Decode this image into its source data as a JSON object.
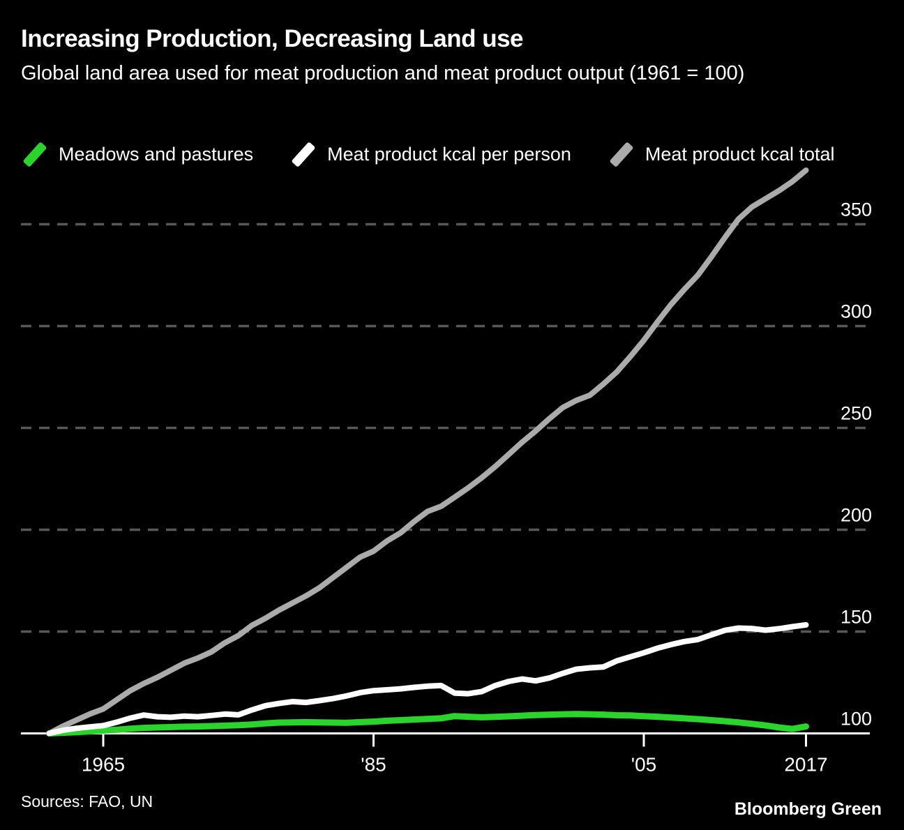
{
  "header": {
    "title": "Increasing Production, Decreasing Land use",
    "subtitle": "Global land area used for meat production and meat product output (1961 = 100)"
  },
  "footer": {
    "sources": "Sources: FAO, UN",
    "brand": "Bloomberg Green"
  },
  "chart_data": {
    "type": "line",
    "title": "Increasing Production, Decreasing Land use",
    "subtitle": "Global land area used for meat production and meat product output (1961 = 100)",
    "xlabel": "",
    "ylabel": "",
    "xlim": [
      1961,
      2017
    ],
    "ylim": [
      95,
      385
    ],
    "grid": true,
    "legend_position": "top",
    "background_color": "#000000",
    "gridline_color": "#585858",
    "axis_color": "#ffffff",
    "x": [
      1961,
      1962,
      1963,
      1964,
      1965,
      1966,
      1967,
      1968,
      1969,
      1970,
      1971,
      1972,
      1973,
      1974,
      1975,
      1976,
      1977,
      1978,
      1979,
      1980,
      1981,
      1982,
      1983,
      1984,
      1985,
      1986,
      1987,
      1988,
      1989,
      1990,
      1991,
      1992,
      1993,
      1994,
      1995,
      1996,
      1997,
      1998,
      1999,
      2000,
      2001,
      2002,
      2003,
      2004,
      2005,
      2006,
      2007,
      2008,
      2009,
      2010,
      2011,
      2012,
      2013,
      2014,
      2015,
      2016,
      2017
    ],
    "yticks": [
      100,
      150,
      200,
      250,
      300,
      350
    ],
    "xticks": [
      {
        "year": 1965,
        "label": "1965"
      },
      {
        "year": 1985,
        "label": "'85"
      },
      {
        "year": 2005,
        "label": "'05"
      },
      {
        "year": 2017,
        "label": "2017"
      }
    ],
    "series": [
      {
        "name": "Meadows and pastures",
        "color": "#2bd42b",
        "values": [
          100,
          100.3,
          100.6,
          101,
          101.4,
          101.8,
          102.3,
          102.7,
          102.9,
          103.1,
          103.3,
          103.4,
          103.6,
          103.8,
          104,
          104.4,
          104.9,
          105.3,
          105.4,
          105.5,
          105.4,
          105.3,
          105.2,
          105.5,
          105.8,
          106.2,
          106.5,
          106.8,
          107.1,
          107.4,
          108.5,
          108.2,
          107.9,
          108.1,
          108.4,
          108.7,
          109,
          109.2,
          109.4,
          109.5,
          109.4,
          109.2,
          108.9,
          108.8,
          108.5,
          108.2,
          107.8,
          107.4,
          107,
          106.5,
          106,
          105.4,
          104.7,
          103.9,
          102.9,
          102.2,
          103.4
        ]
      },
      {
        "name": "Meat product kcal per person",
        "color": "#ffffff",
        "values": [
          100,
          101.5,
          102.5,
          103.2,
          103.8,
          105.5,
          107.5,
          109,
          108.2,
          107.9,
          108.5,
          108.2,
          108.8,
          109.5,
          109.1,
          111.5,
          113.6,
          114.7,
          115.6,
          115.2,
          116.1,
          117.1,
          118.4,
          120,
          121,
          121.4,
          121.9,
          122.6,
          123.2,
          123.5,
          119.8,
          119.5,
          120.5,
          123.5,
          125.5,
          126.7,
          125.8,
          127.2,
          129.5,
          131.5,
          132.2,
          132.6,
          135.6,
          137.6,
          139.6,
          141.8,
          143.6,
          145.1,
          146.1,
          148.4,
          150.6,
          151.7,
          151.5,
          150.7,
          151.4,
          152.4,
          153.3
        ]
      },
      {
        "name": "Meat product kcal total",
        "color": "#ababab",
        "values": [
          100,
          103.5,
          106.5,
          109.5,
          112,
          116.5,
          121,
          124.5,
          127.5,
          131,
          134.5,
          137,
          140,
          144.5,
          148,
          153,
          156.5,
          160.5,
          164,
          167.5,
          171.5,
          176.5,
          181.5,
          186.5,
          189.5,
          194.5,
          198.5,
          204,
          209,
          211.5,
          216,
          220.5,
          225.5,
          231,
          237,
          243,
          248.5,
          254.5,
          260,
          263.5,
          266,
          271.5,
          277.5,
          285,
          293,
          302,
          310.5,
          318,
          325,
          334,
          343.5,
          352.5,
          358.5,
          362.5,
          366.5,
          371,
          376.5
        ]
      }
    ]
  }
}
